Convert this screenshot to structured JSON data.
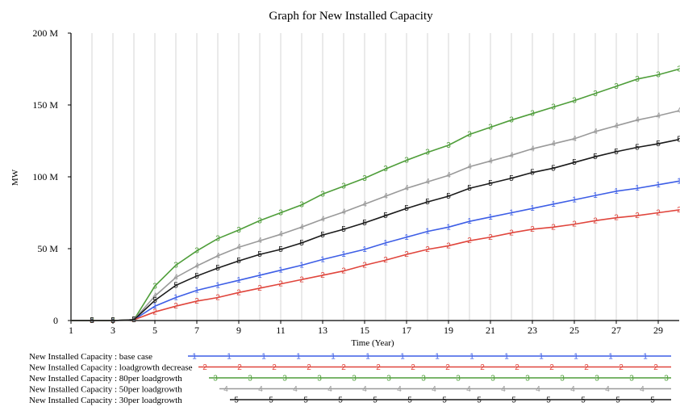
{
  "chart_data": {
    "type": "line",
    "title": "Graph for New Installed Capacity",
    "xlabel": "Time (Year)",
    "ylabel": "MW",
    "xlim": [
      1,
      30
    ],
    "ylim": [
      0,
      200
    ],
    "x_ticks": [
      "1",
      "3",
      "5",
      "7",
      "9",
      "11",
      "13",
      "15",
      "17",
      "19",
      "21",
      "23",
      "25",
      "27",
      "29"
    ],
    "y_ticks": [
      "0",
      "50 M",
      "100 M",
      "150 M",
      "200 M"
    ],
    "grid": "vertical",
    "legend_position": "bottom",
    "x": [
      1,
      2,
      3,
      4,
      5,
      6,
      7,
      8,
      9,
      10,
      11,
      12,
      13,
      14,
      15,
      16,
      17,
      18,
      19,
      20,
      21,
      22,
      23,
      24,
      25,
      26,
      27,
      28,
      29,
      30
    ],
    "series": [
      {
        "name": "New Installed Capacity : base case",
        "marker": "1",
        "color": "#3d5ee6",
        "values": [
          0,
          0,
          0,
          0.5,
          10,
          16,
          21,
          24.5,
          28,
          31.5,
          35,
          38.5,
          42.5,
          46,
          49.5,
          54,
          58,
          62,
          65,
          69,
          72,
          75,
          78,
          81,
          84,
          87,
          90,
          92,
          94.5,
          97
        ]
      },
      {
        "name": "New Installed Capacity : loadgrowth decrease",
        "marker": "2",
        "color": "#e0453c",
        "values": [
          0,
          0,
          0,
          0.5,
          6,
          10,
          13.5,
          16,
          19.5,
          22.5,
          25.5,
          28.5,
          31.5,
          34.5,
          38.5,
          42,
          46,
          49.5,
          52,
          55.5,
          58,
          61,
          63.5,
          65,
          67,
          69.5,
          71.5,
          73,
          75,
          77
        ]
      },
      {
        "name": "New Installed Capacity : 80per loadgrowth",
        "marker": "3",
        "color": "#4f9e3a",
        "values": [
          0,
          0,
          0,
          0.5,
          24,
          38.5,
          48.5,
          57,
          63,
          69.5,
          75,
          80.5,
          88,
          93.5,
          99,
          105.5,
          111.5,
          117,
          122,
          129.5,
          134.5,
          139.5,
          144,
          148.5,
          153,
          158,
          163,
          168,
          171,
          175
        ]
      },
      {
        "name": "New Installed Capacity : 50per loadgrowth",
        "marker": "4",
        "color": "#9a9a9a",
        "values": [
          0,
          0,
          0,
          0.5,
          17,
          30,
          38,
          45,
          51,
          55.5,
          60,
          65,
          70.5,
          75.5,
          81,
          86.5,
          92,
          96.5,
          101,
          107,
          111,
          115,
          119.5,
          123,
          126.5,
          131.5,
          135.5,
          139.5,
          142.5,
          146
        ]
      },
      {
        "name": "New Installed Capacity : 30per loadgrowth",
        "marker": "5",
        "color": "#1a1a1a",
        "values": [
          0,
          0,
          0,
          0.5,
          14,
          24.5,
          31,
          36.5,
          41.5,
          46,
          49.5,
          54,
          59.5,
          63.5,
          68,
          73,
          78,
          82.5,
          86.5,
          92,
          95.5,
          99,
          103,
          106,
          110,
          114,
          117.5,
          120.5,
          123,
          126
        ]
      }
    ]
  }
}
